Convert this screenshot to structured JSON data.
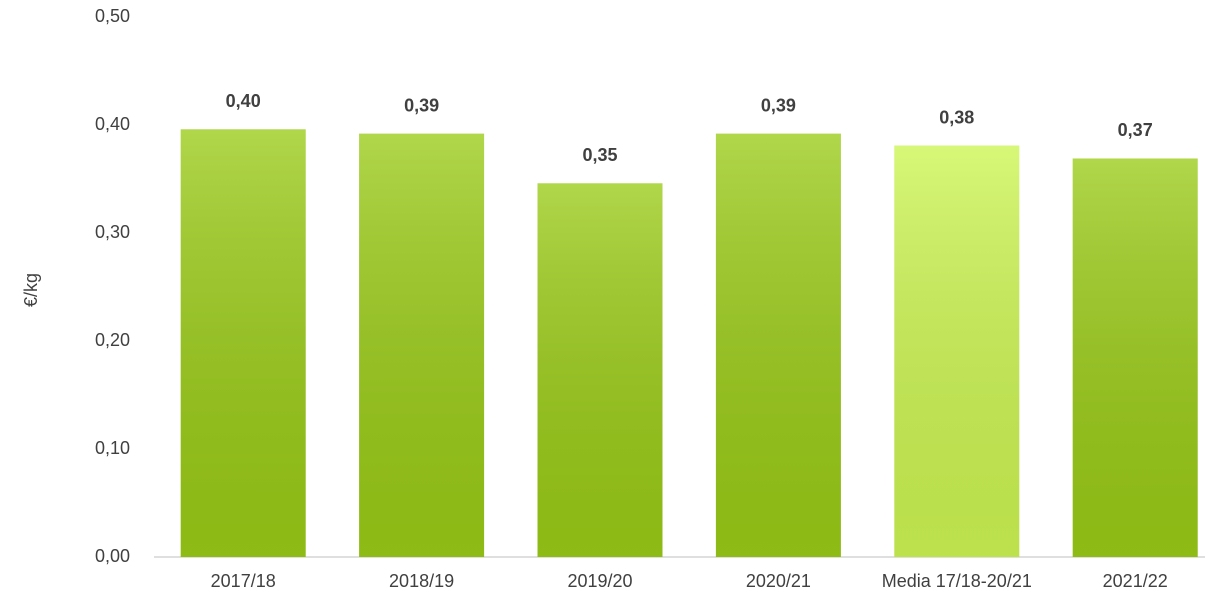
{
  "chart_data": {
    "type": "bar",
    "y_label": "€/kg",
    "categories": [
      "2017/18",
      "2018/19",
      "2019/20",
      "2020/21",
      "Media 17/18-20/21",
      "2021/22"
    ],
    "values": [
      0.396,
      0.392,
      0.346,
      0.392,
      0.381,
      0.369
    ],
    "value_labels": [
      "0,40",
      "0,39",
      "0,35",
      "0,39",
      "0,38",
      "0,37"
    ],
    "colors": [
      "#9acb17",
      "#9acb17",
      "#9acb17",
      "#9acb17",
      "#ccf552",
      "#9acb17"
    ],
    "ylim": [
      0,
      0.5
    ],
    "yticks": [
      {
        "value": 0,
        "label": "0,00"
      },
      {
        "value": 0.1,
        "label": "0,10"
      },
      {
        "value": 0.2,
        "label": "0,20"
      },
      {
        "value": 0.3,
        "label": "0,30"
      },
      {
        "value": 0.4,
        "label": "0,40"
      },
      {
        "value": 0.5,
        "label": "0,50"
      }
    ],
    "grid": false
  }
}
